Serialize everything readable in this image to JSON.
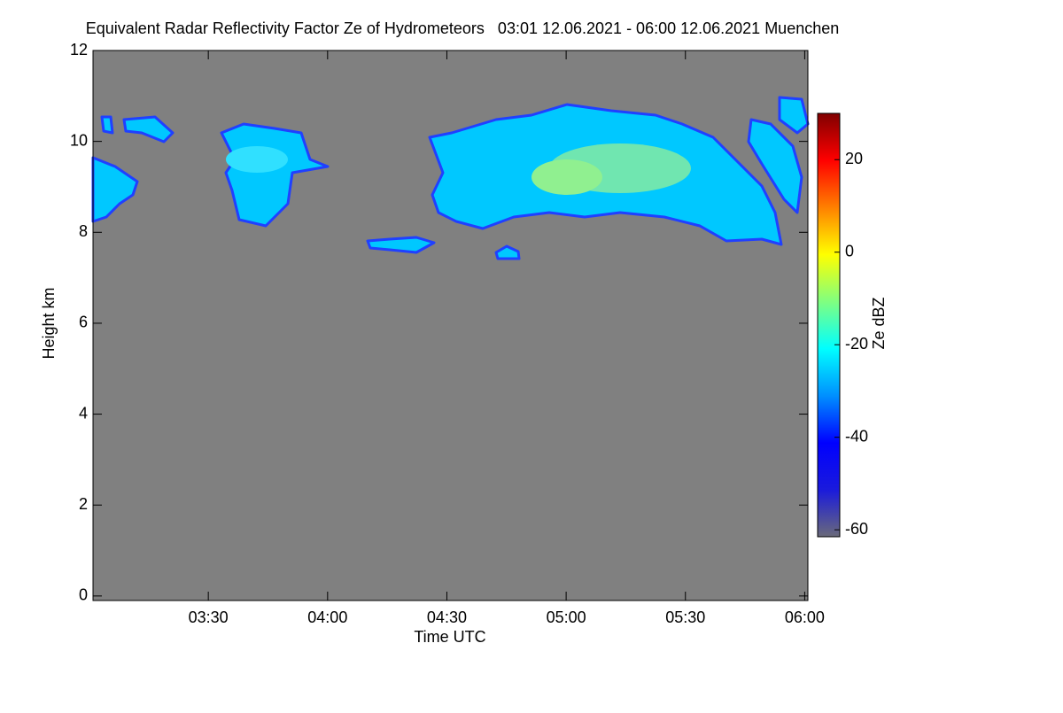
{
  "chart_data": {
    "type": "heatmap",
    "title": "Equivalent Radar Reflectivity Factor Ze of Hydrometeors   03:01 12.06.2021 - 06:00 12.06.2021 Muenchen",
    "xlabel": "Time UTC",
    "ylabel": "Height km",
    "colorbar_label": "Ze dBZ",
    "xlim": [
      1,
      180.8
    ],
    "xticks": [
      {
        "value": 30,
        "label": "03:30"
      },
      {
        "value": 60,
        "label": "04:00"
      },
      {
        "value": 90,
        "label": "04:30"
      },
      {
        "value": 120,
        "label": "05:00"
      },
      {
        "value": 150,
        "label": "05:30"
      },
      {
        "value": 180,
        "label": "06:00"
      }
    ],
    "ylim": [
      -0.1,
      12
    ],
    "yticks": [
      0,
      2,
      4,
      6,
      8,
      10,
      12
    ],
    "zlim": [
      -61.5,
      30
    ],
    "zticks": [
      -60,
      -40,
      -20,
      0,
      20
    ],
    "colormap": [
      "#6a6a7a",
      "#1a1adc",
      "#0000ff",
      "#0090ff",
      "#00ffff",
      "#80ff80",
      "#ffff00",
      "#ff8000",
      "#ff0000",
      "#800000"
    ],
    "background": "#808080"
  }
}
